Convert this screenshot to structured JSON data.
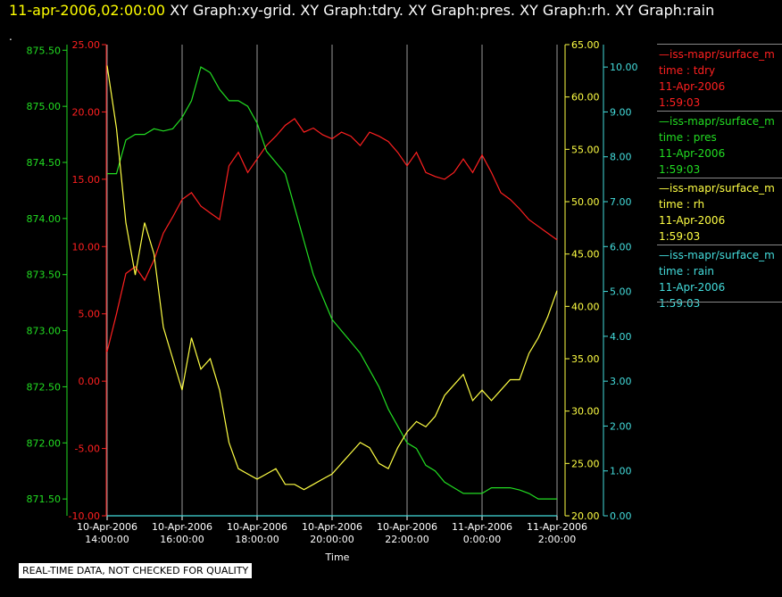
{
  "header": {
    "time": "11-apr-2006,02:00:00",
    "graphs": "XY Graph:xy-grid.  XY Graph:tdry.  XY Graph:pres.  XY Graph:rh.  XY Graph:rain",
    "dot": "."
  },
  "notice": "REAL-TIME DATA, NOT CHECKED FOR QUALITY",
  "legend": [
    {
      "source": "—iss-mapr/surface_m",
      "var": "time : tdry",
      "date": "11-Apr-2006",
      "time": "1:59:03",
      "color": "#ff2020"
    },
    {
      "source": "—iss-mapr/surface_m",
      "var": "time : pres",
      "date": "11-Apr-2006",
      "time": "1:59:03",
      "color": "#22dd22"
    },
    {
      "source": "—iss-mapr/surface_m",
      "var": "time : rh",
      "date": "11-Apr-2006",
      "time": "1:59:03",
      "color": "#ffff44"
    },
    {
      "source": "—iss-mapr/surface_m",
      "var": "time : rain",
      "date": "11-Apr-2006",
      "time": "1:59:03",
      "color": "#44dddd"
    }
  ],
  "chart_data": {
    "type": "line",
    "xlabel": "Time",
    "x_ticks": [
      {
        "date": "10-Apr-2006",
        "time": "14:00:00",
        "hour": 0
      },
      {
        "date": "10-Apr-2006",
        "time": "16:00:00",
        "hour": 2
      },
      {
        "date": "10-Apr-2006",
        "time": "18:00:00",
        "hour": 4
      },
      {
        "date": "10-Apr-2006",
        "time": "20:00:00",
        "hour": 6
      },
      {
        "date": "10-Apr-2006",
        "time": "22:00:00",
        "hour": 8
      },
      {
        "date": "11-Apr-2006",
        "time": "0:00:00",
        "hour": 10
      },
      {
        "date": "11-Apr-2006",
        "time": "2:00:00",
        "hour": 12
      }
    ],
    "xlim": [
      0,
      12
    ],
    "grid": true,
    "axes": {
      "tdry": {
        "color": "#ff2020",
        "ylim": [
          -10,
          25
        ],
        "ticks": [
          "-10.00",
          "-5.00",
          "0.00",
          "5.00",
          "10.00",
          "15.00",
          "20.00",
          "25.00"
        ]
      },
      "pres": {
        "color": "#22dd22",
        "ylim": [
          871.35,
          875.55
        ],
        "ticks": [
          "871.50",
          "872.00",
          "872.50",
          "873.00",
          "873.50",
          "874.00",
          "874.50",
          "875.00",
          "875.50"
        ]
      },
      "rh": {
        "color": "#ffff44",
        "ylim": [
          20,
          65
        ],
        "ticks": [
          "20.00",
          "25.00",
          "30.00",
          "35.00",
          "40.00",
          "45.00",
          "50.00",
          "55.00",
          "60.00",
          "65.00"
        ]
      },
      "rain": {
        "color": "#44dddd",
        "ylim": [
          0,
          10.5
        ],
        "ticks": [
          "0.00",
          "1.00",
          "2.00",
          "3.00",
          "4.00",
          "5.00",
          "6.00",
          "7.00",
          "8.00",
          "9.00",
          "10.00"
        ]
      }
    },
    "series": [
      {
        "name": "tdry",
        "axis": "tdry",
        "x": [
          0,
          0.25,
          0.5,
          0.75,
          1,
          1.25,
          1.5,
          1.75,
          2,
          2.25,
          2.5,
          2.75,
          3,
          3.25,
          3.5,
          3.75,
          4,
          4.25,
          4.5,
          4.75,
          5,
          5.25,
          5.5,
          5.75,
          6,
          6.25,
          6.5,
          6.75,
          7,
          7.25,
          7.5,
          7.75,
          8,
          8.25,
          8.5,
          8.75,
          9,
          9.25,
          9.5,
          9.75,
          10,
          10.25,
          10.5,
          10.75,
          11,
          11.25,
          11.5,
          11.75,
          12
        ],
        "y": [
          2.2,
          5,
          8,
          8.5,
          7.5,
          9,
          11,
          12.2,
          13.5,
          14,
          13,
          12.5,
          12,
          16,
          17,
          15.5,
          16.5,
          17.5,
          18.2,
          19,
          19.5,
          18.5,
          18.8,
          18.3,
          18,
          18.5,
          18.2,
          17.5,
          18.5,
          18.2,
          17.8,
          17,
          16,
          17,
          15.5,
          15.2,
          15,
          15.5,
          16.5,
          15.5,
          16.8,
          15.5,
          14,
          13.5,
          12.8,
          12,
          11.5,
          11,
          10.5
        ]
      },
      {
        "name": "pres",
        "axis": "pres",
        "x": [
          0,
          0.25,
          0.5,
          0.75,
          1,
          1.25,
          1.5,
          1.75,
          2,
          2.25,
          2.5,
          2.75,
          3,
          3.25,
          3.5,
          3.75,
          4,
          4.25,
          4.5,
          4.75,
          5,
          5.25,
          5.5,
          5.75,
          6,
          6.25,
          6.5,
          6.75,
          7,
          7.25,
          7.5,
          7.75,
          8,
          8.25,
          8.5,
          8.75,
          9,
          9.25,
          9.5,
          9.75,
          10,
          10.25,
          10.5,
          10.75,
          11,
          11.25,
          11.5,
          11.75,
          12
        ],
        "y": [
          874.4,
          874.4,
          874.7,
          874.75,
          874.75,
          874.8,
          874.78,
          874.8,
          874.9,
          875.05,
          875.35,
          875.3,
          875.15,
          875.05,
          875.05,
          875.0,
          874.85,
          874.6,
          874.5,
          874.4,
          874.1,
          873.8,
          873.5,
          873.3,
          873.1,
          873.0,
          872.9,
          872.8,
          872.65,
          872.5,
          872.3,
          872.15,
          872.0,
          871.95,
          871.8,
          871.75,
          871.65,
          871.6,
          871.55,
          871.55,
          871.55,
          871.6,
          871.6,
          871.6,
          871.58,
          871.55,
          871.5,
          871.5,
          871.5
        ]
      },
      {
        "name": "rh",
        "axis": "rh",
        "x": [
          0,
          0.25,
          0.5,
          0.75,
          1,
          1.25,
          1.5,
          1.75,
          2,
          2.25,
          2.5,
          2.75,
          3,
          3.25,
          3.5,
          3.75,
          4,
          4.25,
          4.5,
          4.75,
          5,
          5.25,
          5.5,
          5.75,
          6,
          6.25,
          6.5,
          6.75,
          7,
          7.25,
          7.5,
          7.75,
          8,
          8.25,
          8.5,
          8.75,
          9,
          9.25,
          9.5,
          9.75,
          10,
          10.25,
          10.5,
          10.75,
          11,
          11.25,
          11.5,
          11.75,
          12
        ],
        "y": [
          63,
          57,
          48,
          43,
          48,
          45,
          38,
          35,
          32,
          37,
          34,
          35,
          32,
          27,
          24.5,
          24,
          23.5,
          24,
          24.5,
          23,
          23,
          22.5,
          23,
          23.5,
          24,
          25,
          26,
          27,
          26.5,
          25,
          24.5,
          26.5,
          28,
          29,
          28.5,
          29.5,
          31.5,
          32.5,
          33.5,
          31,
          32,
          31,
          32,
          33,
          33,
          35.5,
          37,
          39,
          41.5
        ]
      },
      {
        "name": "rain",
        "axis": "rain",
        "x": [
          0,
          12
        ],
        "y": [
          0,
          0
        ]
      }
    ]
  }
}
